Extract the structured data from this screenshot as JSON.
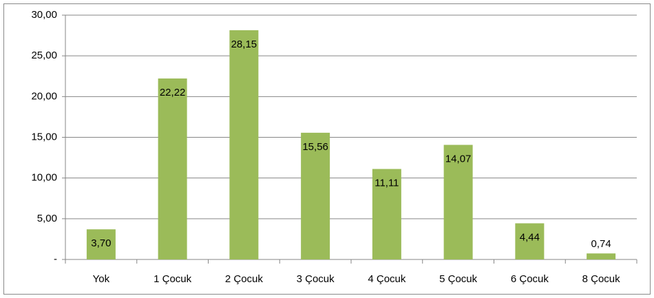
{
  "chart_data": {
    "type": "bar",
    "categories": [
      "Yok",
      "1 Çocuk",
      "2 Çocuk",
      "3 Çocuk",
      "4 Çocuk",
      "5 Çocuk",
      "6 Çocuk",
      "8 Çocuk"
    ],
    "values": [
      3.7,
      22.22,
      28.15,
      15.56,
      11.11,
      14.07,
      4.44,
      0.74
    ],
    "value_labels": [
      "3,70",
      "22,22",
      "28,15",
      "15,56",
      "11,11",
      "14,07",
      "4,44",
      "0,74"
    ],
    "color": "#9bbb59",
    "ylim": [
      0,
      30
    ],
    "yticks": [
      {
        "value": 0,
        "label": "-"
      },
      {
        "value": 5,
        "label": "5,00"
      },
      {
        "value": 10,
        "label": "10,00"
      },
      {
        "value": 15,
        "label": "15,00"
      },
      {
        "value": 20,
        "label": "20,00"
      },
      {
        "value": 25,
        "label": "25,00"
      },
      {
        "value": 30,
        "label": "30,00"
      }
    ],
    "grid": true
  }
}
